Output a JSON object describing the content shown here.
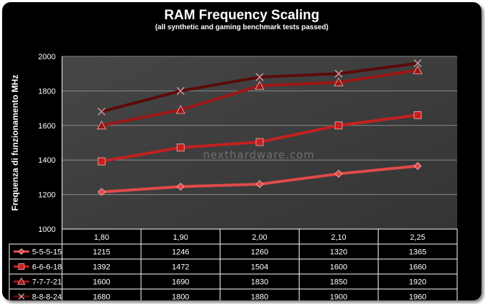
{
  "chart_data": {
    "type": "line",
    "title": "RAM Frequency Scaling",
    "subtitle": "(all synthetic and gaming benchmark tests passed)",
    "ylabel": "Frequenza di  funzionamento  MHz",
    "xlabel": "",
    "categories": [
      "1,80",
      "1,90",
      "2,00",
      "2,10",
      "2,25"
    ],
    "ylim": [
      1000,
      2000
    ],
    "yticks": [
      1000,
      1200,
      1400,
      1600,
      1800,
      2000
    ],
    "grid": true,
    "legend": "data-table",
    "watermark": "nexthardware.com",
    "background_color": "#3a3a3a",
    "series": [
      {
        "name": "5-5-5-15",
        "values": [
          1215,
          1246,
          1260,
          1320,
          1365
        ],
        "marker": "diamond",
        "color": "#e04a4a"
      },
      {
        "name": "6-6-6-18",
        "values": [
          1392,
          1472,
          1504,
          1600,
          1660
        ],
        "marker": "square",
        "color": "#c42020"
      },
      {
        "name": "7-7-7-21",
        "values": [
          1600,
          1690,
          1830,
          1850,
          1920
        ],
        "marker": "triangle",
        "color": "#9e1616"
      },
      {
        "name": "8-8-8-24",
        "values": [
          1680,
          1800,
          1880,
          1900,
          1960
        ],
        "marker": "x",
        "color": "#5c0a0a"
      }
    ]
  }
}
